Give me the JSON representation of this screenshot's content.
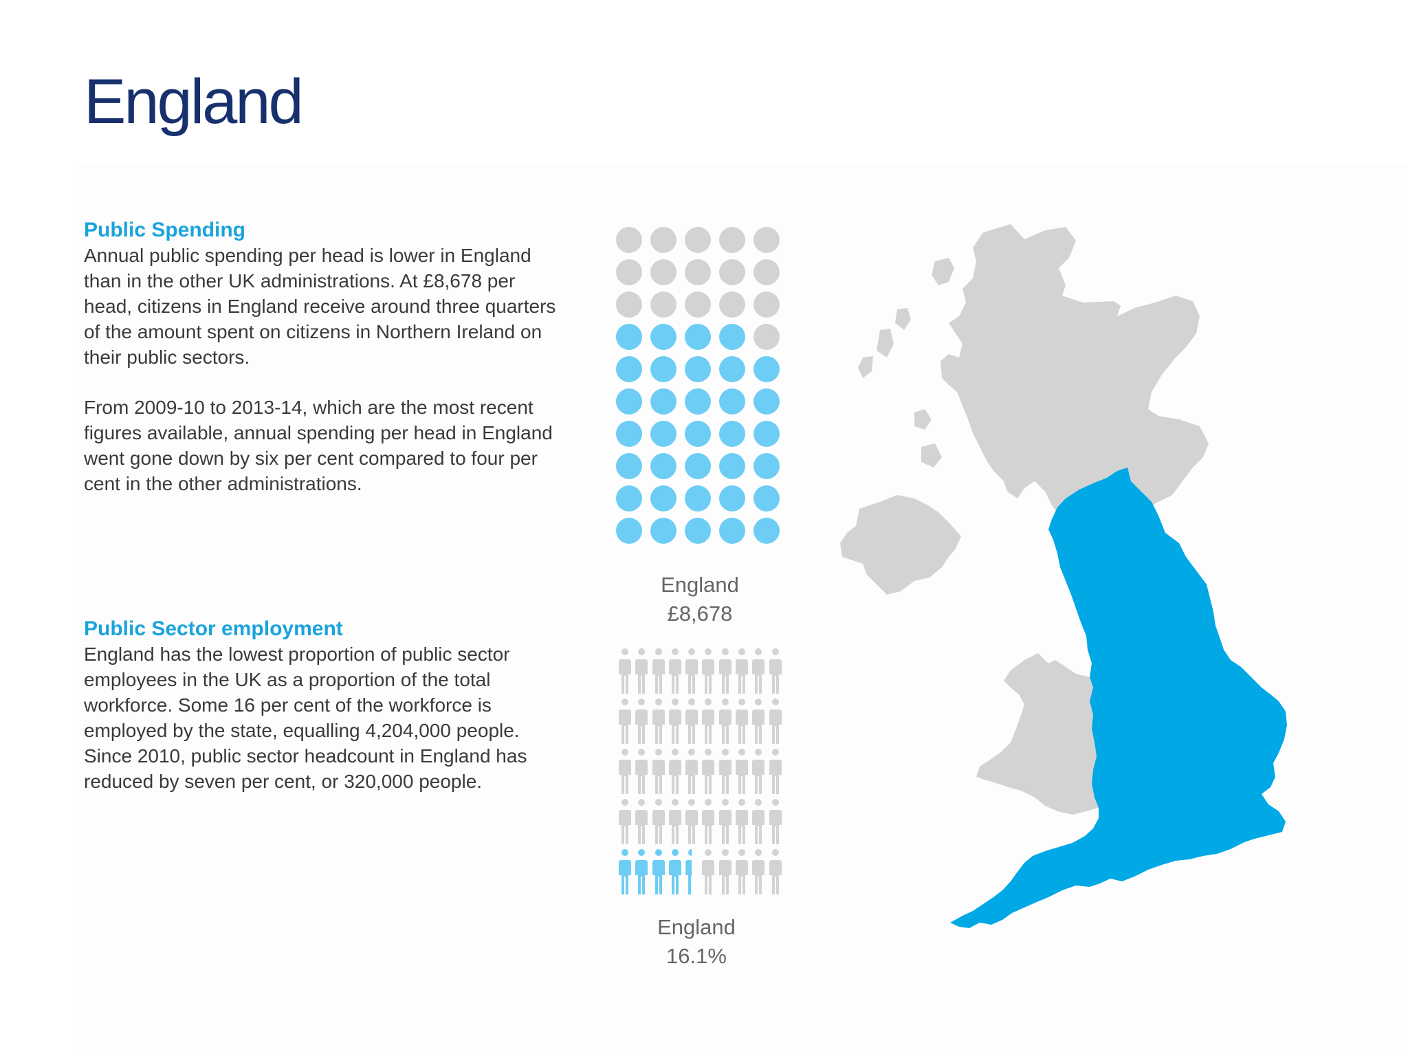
{
  "title": "England",
  "spending": {
    "heading": "Public Spending",
    "paragraphs": [
      "Annual public spending per head is lower in England than in the other UK administrations. At £8,678 per head, citizens in England receive around three quarters of the amount spent on citizens in Northern Ireland on their public sectors.",
      "From 2009-10 to 2013-14, which are the most recent figures available, annual spending per head in England went gone down by six per cent compared to four per cent in the other administrations."
    ],
    "caption_region": "England",
    "caption_value": "£8,678",
    "dots_total": 50,
    "dots_filled": 34
  },
  "employment": {
    "heading": "Public Sector employment",
    "paragraphs": [
      "England has the lowest proportion of public sector employees in the UK as a proportion of the total workforce. Some 16 per cent of the workforce is employed by the state, equalling 4,204,000 people. Since 2010, public sector headcount in England has reduced by seven per cent, or 320,000 people."
    ],
    "caption_region": "England",
    "caption_value": "16.1%",
    "people_total": 50,
    "people_filled": 4.5
  },
  "colors": {
    "title": "#17316e",
    "heading": "#1aa3dc",
    "highlight_map": "#00a8e6",
    "filled_icon": "#6dcdf4",
    "empty_icon": "#d3d3d3"
  },
  "map": {
    "highlighted_region": "England"
  }
}
